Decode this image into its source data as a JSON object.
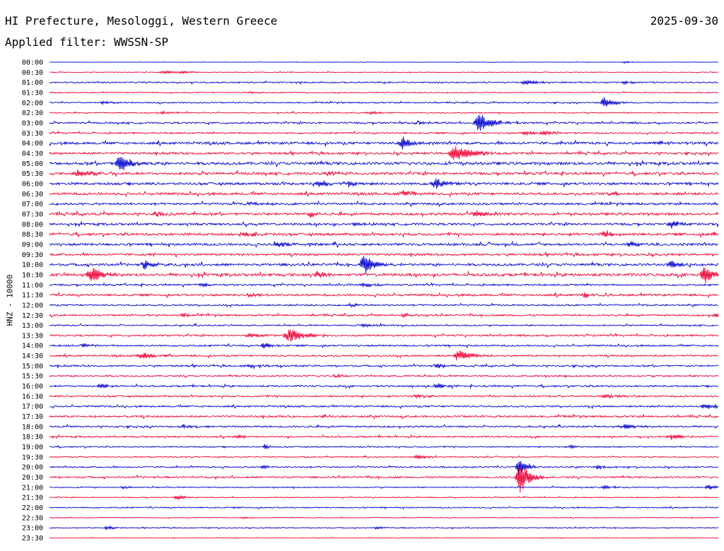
{
  "header": {
    "station": "HI Prefecture, Mesologgi, Western Greece",
    "date": "2025-09-30",
    "filter": "Applied filter: WWSSN-SP",
    "channel": "HNZ - 10000"
  },
  "colors": {
    "odd_trace": "#0000cc",
    "even_trace": "#ee0033",
    "text": "#000000"
  },
  "chart_data": {
    "type": "line",
    "title": "HI Prefecture, Mesologgi, Western Greece",
    "subtitle": "Applied filter: WWSSN-SP",
    "ylabel": "HNZ - 10000",
    "grid": false,
    "rows": [
      {
        "time": "00:00",
        "noise": 0.3,
        "events": [
          {
            "t": 0.86,
            "amp": 1.5,
            "w": 0.006
          }
        ]
      },
      {
        "time": "00:30",
        "noise": 0.5,
        "events": [
          {
            "t": 0.17,
            "amp": 2.5,
            "w": 0.01
          },
          {
            "t": 0.2,
            "amp": 2,
            "w": 0.008
          }
        ]
      },
      {
        "time": "01:00",
        "noise": 0.9,
        "events": [
          {
            "t": 0.71,
            "amp": 5,
            "w": 0.008
          },
          {
            "t": 0.86,
            "amp": 2,
            "w": 0.01
          }
        ]
      },
      {
        "time": "01:30",
        "noise": 0.6,
        "events": [
          {
            "t": 0.3,
            "amp": 1.5,
            "w": 0.01
          }
        ]
      },
      {
        "time": "02:00",
        "noise": 0.8,
        "events": [
          {
            "t": 0.83,
            "amp": 8,
            "w": 0.008
          },
          {
            "t": 0.08,
            "amp": 2,
            "w": 0.01
          }
        ]
      },
      {
        "time": "02:30",
        "noise": 0.7,
        "events": [
          {
            "t": 0.17,
            "amp": 2,
            "w": 0.01
          },
          {
            "t": 0.48,
            "amp": 2,
            "w": 0.01
          }
        ]
      },
      {
        "time": "03:00",
        "noise": 1.1,
        "events": [
          {
            "t": 0.643,
            "amp": 16,
            "w": 0.01
          },
          {
            "t": 0.55,
            "amp": 2,
            "w": 0.008
          }
        ]
      },
      {
        "time": "03:30",
        "noise": 1.0,
        "events": [
          {
            "t": 0.71,
            "amp": 3,
            "w": 0.01
          },
          {
            "t": 0.74,
            "amp": 3,
            "w": 0.01
          }
        ]
      },
      {
        "time": "04:00",
        "noise": 1.6,
        "events": [
          {
            "t": 0.528,
            "amp": 10,
            "w": 0.008
          },
          {
            "t": 0.91,
            "amp": 3,
            "w": 0.01
          }
        ]
      },
      {
        "time": "04:30",
        "noise": 1.4,
        "events": [
          {
            "t": 0.607,
            "amp": 13,
            "w": 0.012
          }
        ]
      },
      {
        "time": "05:00",
        "noise": 1.8,
        "events": [
          {
            "t": 0.106,
            "amp": 13,
            "w": 0.009
          }
        ]
      },
      {
        "time": "05:30",
        "noise": 1.6,
        "events": [
          {
            "t": 0.045,
            "amp": 5,
            "w": 0.012
          },
          {
            "t": 0.42,
            "amp": 2.5,
            "w": 0.01
          }
        ]
      },
      {
        "time": "06:00",
        "noise": 1.6,
        "events": [
          {
            "t": 0.403,
            "amp": 6,
            "w": 0.008
          },
          {
            "t": 0.577,
            "amp": 8,
            "w": 0.01
          },
          {
            "t": 0.45,
            "amp": 3,
            "w": 0.01
          }
        ]
      },
      {
        "time": "06:30",
        "noise": 1.6,
        "events": [
          {
            "t": 0.53,
            "amp": 4,
            "w": 0.01
          },
          {
            "t": 0.84,
            "amp": 3,
            "w": 0.01
          }
        ]
      },
      {
        "time": "07:00",
        "noise": 1.4,
        "events": [
          {
            "t": 0.3,
            "amp": 2,
            "w": 0.01
          }
        ]
      },
      {
        "time": "07:30",
        "noise": 1.6,
        "events": [
          {
            "t": 0.39,
            "amp": 6,
            "w": 0.004
          },
          {
            "t": 0.64,
            "amp": 4,
            "w": 0.012
          },
          {
            "t": 0.16,
            "amp": 3,
            "w": 0.01
          }
        ]
      },
      {
        "time": "08:00",
        "noise": 1.4,
        "events": [
          {
            "t": 0.93,
            "amp": 4,
            "w": 0.012
          },
          {
            "t": 0.46,
            "amp": 3,
            "w": 0.008
          }
        ]
      },
      {
        "time": "08:30",
        "noise": 1.6,
        "events": [
          {
            "t": 0.29,
            "amp": 4,
            "w": 0.01
          },
          {
            "t": 0.83,
            "amp": 4,
            "w": 0.008
          },
          {
            "t": 0.99,
            "amp": 3,
            "w": 0.008
          }
        ]
      },
      {
        "time": "09:00",
        "noise": 1.6,
        "events": [
          {
            "t": 0.342,
            "amp": 4,
            "w": 0.008
          },
          {
            "t": 0.87,
            "amp": 4,
            "w": 0.01
          }
        ]
      },
      {
        "time": "09:30",
        "noise": 1.4,
        "events": [
          {
            "t": 0.15,
            "amp": 2,
            "w": 0.01
          }
        ]
      },
      {
        "time": "10:00",
        "noise": 1.6,
        "events": [
          {
            "t": 0.47,
            "amp": 16,
            "w": 0.008
          },
          {
            "t": 0.143,
            "amp": 8,
            "w": 0.006
          },
          {
            "t": 0.93,
            "amp": 5,
            "w": 0.008
          }
        ]
      },
      {
        "time": "10:30",
        "noise": 1.8,
        "events": [
          {
            "t": 0.063,
            "amp": 14,
            "w": 0.009
          },
          {
            "t": 0.979,
            "amp": 13,
            "w": 0.009
          },
          {
            "t": 0.4,
            "amp": 4,
            "w": 0.01
          }
        ]
      },
      {
        "time": "11:00",
        "noise": 1.1,
        "events": [
          {
            "t": 0.23,
            "amp": 3,
            "w": 0.008
          },
          {
            "t": 0.47,
            "amp": 3,
            "w": 0.01
          }
        ]
      },
      {
        "time": "11:30",
        "noise": 1.4,
        "events": [
          {
            "t": 0.8,
            "amp": 5,
            "w": 0.006
          },
          {
            "t": 0.3,
            "amp": 2,
            "w": 0.01
          }
        ]
      },
      {
        "time": "12:00",
        "noise": 1.0,
        "events": [
          {
            "t": 0.45,
            "amp": 2,
            "w": 0.01
          }
        ]
      },
      {
        "time": "12:30",
        "noise": 1.1,
        "events": [
          {
            "t": 0.2,
            "amp": 3,
            "w": 0.006
          },
          {
            "t": 0.53,
            "amp": 3,
            "w": 0.006
          },
          {
            "t": 0.995,
            "amp": 4,
            "w": 0.005
          }
        ]
      },
      {
        "time": "13:00",
        "noise": 0.9,
        "events": [
          {
            "t": 0.47,
            "amp": 2,
            "w": 0.01
          }
        ]
      },
      {
        "time": "13:30",
        "noise": 1.1,
        "events": [
          {
            "t": 0.36,
            "amp": 9,
            "w": 0.014
          },
          {
            "t": 0.3,
            "amp": 4,
            "w": 0.01
          }
        ]
      },
      {
        "time": "14:00",
        "noise": 1.1,
        "events": [
          {
            "t": 0.32,
            "amp": 5,
            "w": 0.006
          },
          {
            "t": 0.05,
            "amp": 3,
            "w": 0.006
          }
        ]
      },
      {
        "time": "14:30",
        "noise": 1.1,
        "events": [
          {
            "t": 0.612,
            "amp": 9,
            "w": 0.01
          },
          {
            "t": 0.14,
            "amp": 5,
            "w": 0.01
          }
        ]
      },
      {
        "time": "15:00",
        "noise": 1.1,
        "events": [
          {
            "t": 0.58,
            "amp": 3,
            "w": 0.008
          },
          {
            "t": 0.3,
            "amp": 2,
            "w": 0.01
          }
        ]
      },
      {
        "time": "15:30",
        "noise": 1.0,
        "events": [
          {
            "t": 0.43,
            "amp": 2,
            "w": 0.008
          }
        ]
      },
      {
        "time": "16:00",
        "noise": 1.1,
        "events": [
          {
            "t": 0.075,
            "amp": 5,
            "w": 0.006
          },
          {
            "t": 0.58,
            "amp": 4,
            "w": 0.008
          }
        ]
      },
      {
        "time": "16:30",
        "noise": 1.1,
        "events": [
          {
            "t": 0.83,
            "amp": 3,
            "w": 0.01
          },
          {
            "t": 0.55,
            "amp": 2,
            "w": 0.01
          }
        ]
      },
      {
        "time": "17:00",
        "noise": 1.1,
        "events": [
          {
            "t": 0.98,
            "amp": 4,
            "w": 0.01
          }
        ]
      },
      {
        "time": "17:30",
        "noise": 1.2,
        "events": [
          {
            "t": 0.41,
            "amp": 2,
            "w": 0.01
          }
        ]
      },
      {
        "time": "18:00",
        "noise": 1.1,
        "events": [
          {
            "t": 0.2,
            "amp": 3,
            "w": 0.008
          },
          {
            "t": 0.86,
            "amp": 4,
            "w": 0.012
          }
        ]
      },
      {
        "time": "18:30",
        "noise": 1.0,
        "events": [
          {
            "t": 0.93,
            "amp": 5,
            "w": 0.008
          },
          {
            "t": 0.28,
            "amp": 2,
            "w": 0.01
          }
        ]
      },
      {
        "time": "19:00",
        "noise": 0.8,
        "events": [
          {
            "t": 0.322,
            "amp": 4,
            "w": 0.004
          },
          {
            "t": 0.78,
            "amp": 3,
            "w": 0.004
          }
        ]
      },
      {
        "time": "19:30",
        "noise": 0.7,
        "events": [
          {
            "t": 0.55,
            "amp": 3,
            "w": 0.01
          }
        ]
      },
      {
        "time": "20:00",
        "noise": 0.9,
        "events": [
          {
            "t": 0.702,
            "amp": 13,
            "w": 0.006
          },
          {
            "t": 0.32,
            "amp": 4,
            "w": 0.004
          },
          {
            "t": 0.82,
            "amp": 3,
            "w": 0.006
          }
        ]
      },
      {
        "time": "20:30",
        "noise": 1.1,
        "events": [
          {
            "t": 0.703,
            "amp": 26,
            "w": 0.008
          }
        ]
      },
      {
        "time": "21:00",
        "noise": 0.7,
        "events": [
          {
            "t": 0.83,
            "amp": 3,
            "w": 0.006
          },
          {
            "t": 0.985,
            "amp": 4,
            "w": 0.006
          },
          {
            "t": 0.11,
            "amp": 2,
            "w": 0.006
          }
        ]
      },
      {
        "time": "21:30",
        "noise": 0.6,
        "events": [
          {
            "t": 0.19,
            "amp": 3,
            "w": 0.008
          }
        ]
      },
      {
        "time": "22:00",
        "noise": 0.8,
        "events": []
      },
      {
        "time": "22:30",
        "noise": 0.5,
        "events": [
          {
            "t": 0.29,
            "amp": 1.5,
            "w": 0.008
          }
        ]
      },
      {
        "time": "23:00",
        "noise": 0.6,
        "events": [
          {
            "t": 0.086,
            "amp": 3,
            "w": 0.006
          },
          {
            "t": 0.49,
            "amp": 2,
            "w": 0.006
          }
        ]
      },
      {
        "time": "23:30",
        "noise": 0.4,
        "events": []
      }
    ]
  }
}
